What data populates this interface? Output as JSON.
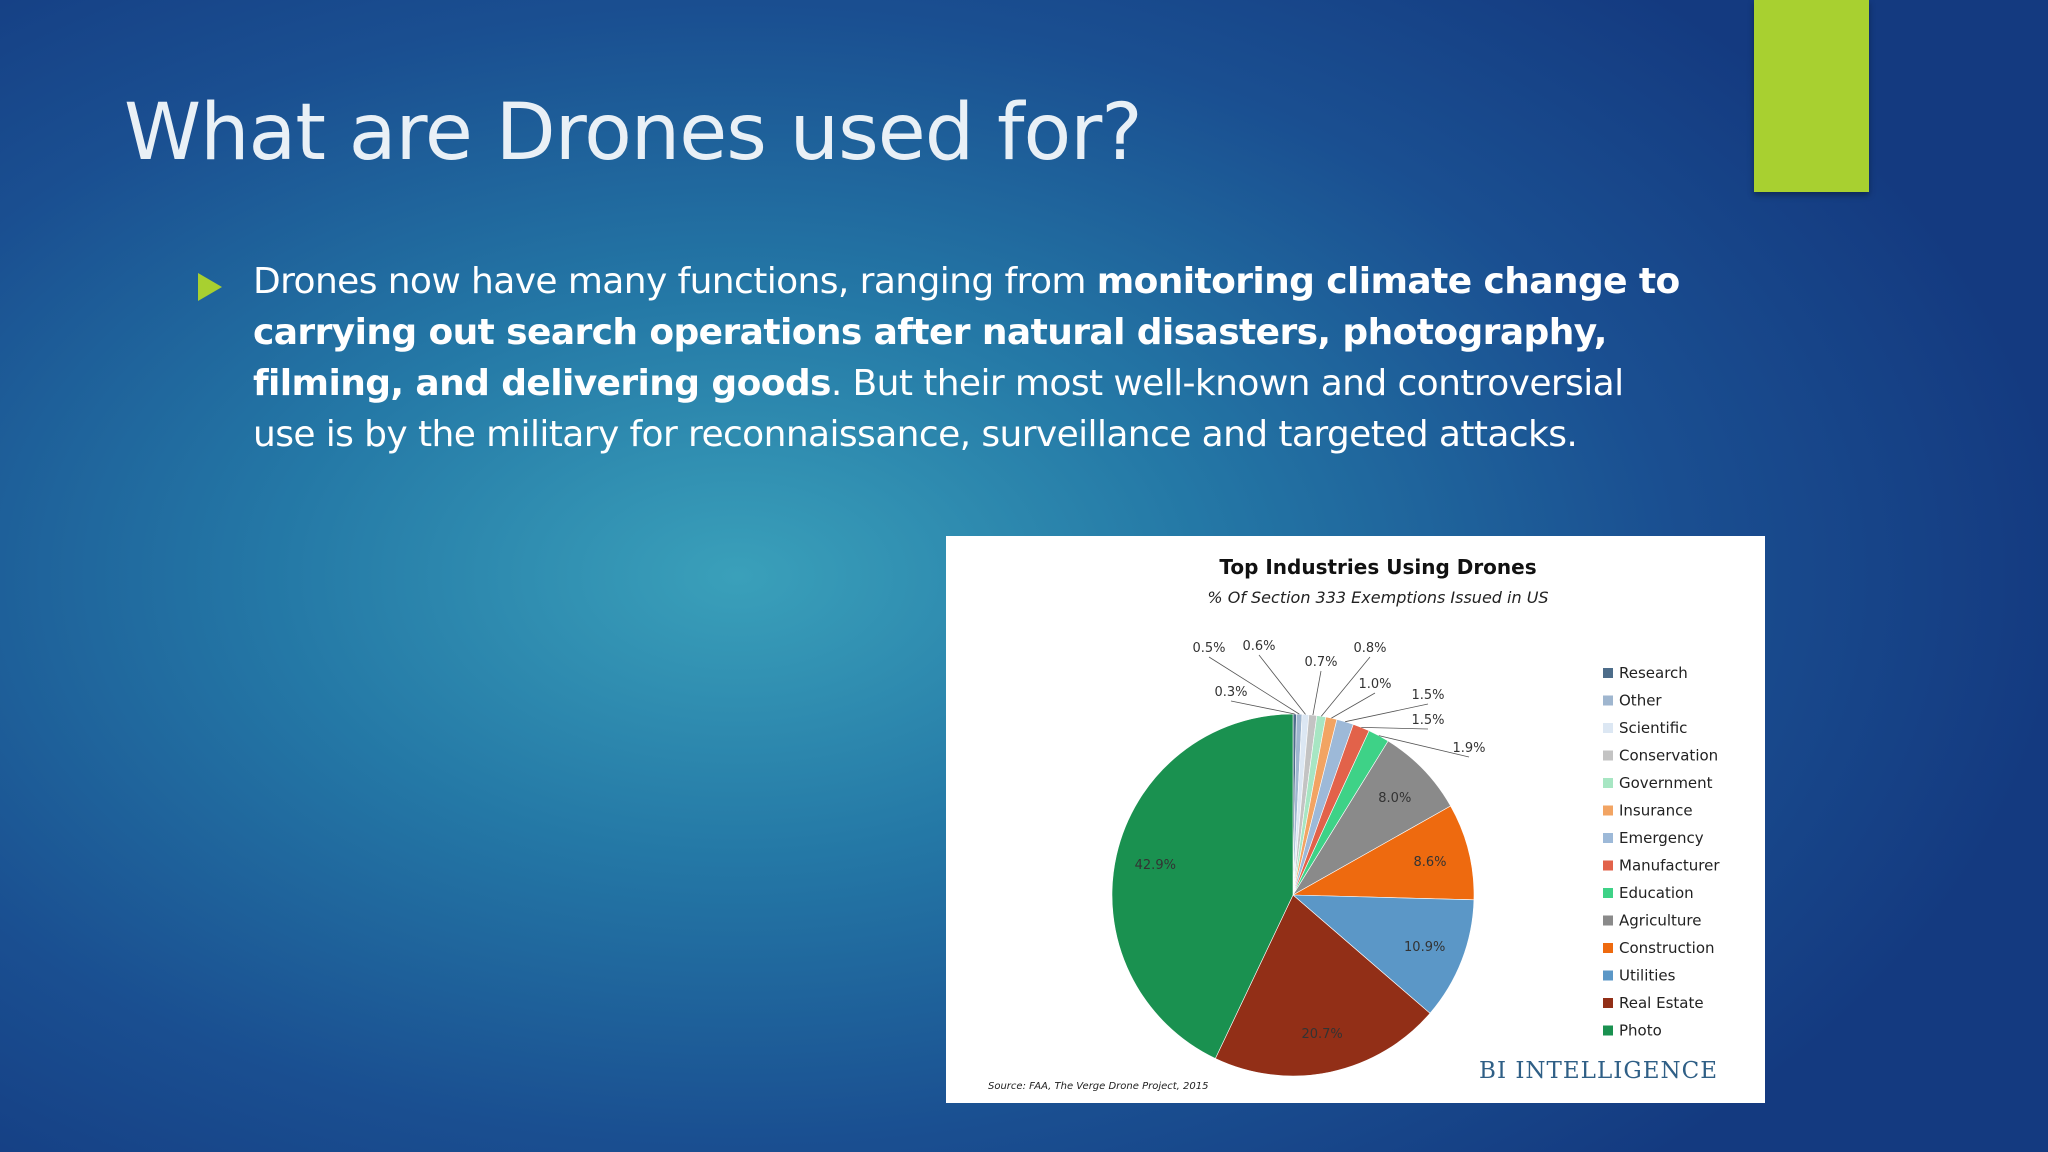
{
  "slide": {
    "title": "What are Drones used for?",
    "bullet": {
      "part1": "Drones now have many functions, ranging from ",
      "bold": "monitoring climate change to carrying out search operations after natural disasters, photography, filming, and delivering goods",
      "part2": ". But their most well-known and controversial use is by the military for reconnaissance, surveillance and targeted attacks."
    },
    "colors": {
      "accent": "#a8d030",
      "title": "#e9f0f6"
    }
  },
  "chart_data": {
    "type": "pie",
    "title": "Top Industries Using Drones",
    "subtitle": "% Of Section 333 Exemptions Issued in US",
    "source": "Source: FAA, The Verge Drone Project, 2015",
    "brand": "BI INTELLIGENCE",
    "legend_position": "right",
    "unit": "%",
    "slices": [
      {
        "name": "Research",
        "value": 0.3,
        "label": "0.3%",
        "color": "#4d6d8a"
      },
      {
        "name": "Other",
        "value": 0.5,
        "label": "0.5%",
        "color": "#9fb6cf"
      },
      {
        "name": "Scientific",
        "value": 0.6,
        "label": "0.6%",
        "color": "#dce7f3"
      },
      {
        "name": "Conservation",
        "value": 0.7,
        "label": "0.7%",
        "color": "#c3c3c3"
      },
      {
        "name": "Government",
        "value": 0.8,
        "label": "0.8%",
        "color": "#a7e6c3"
      },
      {
        "name": "Insurance",
        "value": 1.0,
        "label": "1.0%",
        "color": "#f2a463"
      },
      {
        "name": "Emergency",
        "value": 1.5,
        "label": "1.5%",
        "color": "#9db9d8"
      },
      {
        "name": "Manufacturer",
        "value": 1.5,
        "label": "1.5%",
        "color": "#e2624a"
      },
      {
        "name": "Education",
        "value": 1.9,
        "label": "1.9%",
        "color": "#3ed287"
      },
      {
        "name": "Agriculture",
        "value": 8.0,
        "label": "8.0%",
        "color": "#8a8a8a"
      },
      {
        "name": "Construction",
        "value": 8.6,
        "label": "8.6%",
        "color": "#ee6a0f"
      },
      {
        "name": "Utilities",
        "value": 10.9,
        "label": "10.9%",
        "color": "#5b97c7"
      },
      {
        "name": "Real Estate",
        "value": 20.7,
        "label": "20.7%",
        "color": "#922f17"
      },
      {
        "name": "Photo",
        "value": 42.9,
        "label": "42.9%",
        "color": "#1a9150"
      }
    ]
  }
}
